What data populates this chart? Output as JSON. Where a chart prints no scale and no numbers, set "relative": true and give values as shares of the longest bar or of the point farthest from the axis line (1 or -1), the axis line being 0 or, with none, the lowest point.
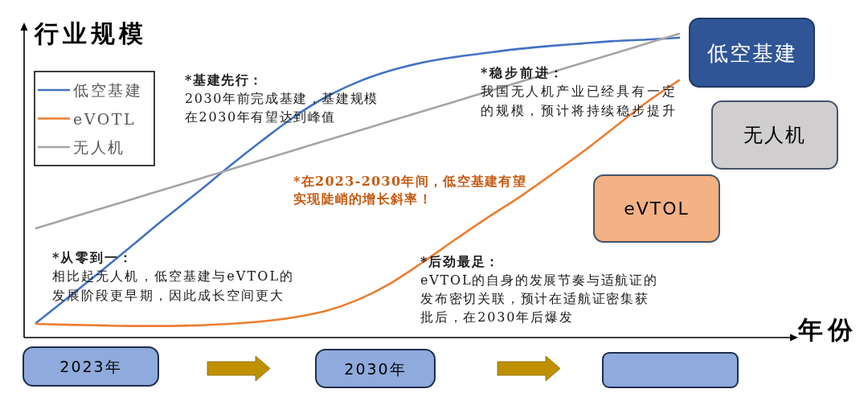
{
  "chart_data": {
    "type": "line",
    "relative": true,
    "ylabel": "行业规模",
    "xlabel": "年份",
    "legend": "top left",
    "categories": [
      null,
      null,
      null,
      null,
      null,
      null,
      null,
      null,
      null,
      null,
      null,
      null,
      null,
      null,
      null,
      null,
      null,
      null,
      null,
      null,
      null
    ],
    "series": [
      {
        "name": "低空基建",
        "color": "#4472c4",
        "values": [
          0.048,
          0.132,
          0.217,
          0.304,
          0.392,
          0.476,
          0.563,
          0.646,
          0.725,
          0.791,
          0.841,
          0.878,
          0.905,
          0.923,
          0.937,
          0.95,
          0.96,
          0.968,
          0.976,
          0.981,
          0.987
        ]
      },
      {
        "name": "eVOTL",
        "color": "#ed7d31",
        "values": [
          0.045,
          0.042,
          0.04,
          0.038,
          0.038,
          0.04,
          0.045,
          0.053,
          0.066,
          0.087,
          0.124,
          0.177,
          0.246,
          0.32,
          0.392,
          0.46,
          0.534,
          0.611,
          0.693,
          0.775,
          0.847
        ]
      },
      {
        "name": "无人机",
        "color": "#a5a5a5",
        "values": [
          0.36,
          0.392,
          0.424,
          0.456,
          0.488,
          0.52,
          0.552,
          0.584,
          0.616,
          0.648,
          0.68,
          0.712,
          0.744,
          0.776,
          0.808,
          0.84,
          0.872,
          0.904,
          0.936,
          0.968,
          1.0
        ]
      }
    ],
    "annotations": [
      "*基建先行：2030年前完成基建，基建规模在2030年有望达到峰值",
      "*稳步前进：我国无人机产业已经具有一定的规模，预计将持续稳步提升",
      "*在2023-2030年间，低空基建有望实现陡峭的增长斜率！",
      "*从零到一：相比起无人机，低空基建与eVTOL的发展阶段更早期，因此成长空间更大",
      "*后劲最足：eVTOL的自身的发展节奏与适航证的发布密切关联，预计在适航证密集获批后，在2030年后爆发",
      "低空基建",
      "无人机",
      "eVTOL",
      "2023年",
      "2030年"
    ]
  }
}
